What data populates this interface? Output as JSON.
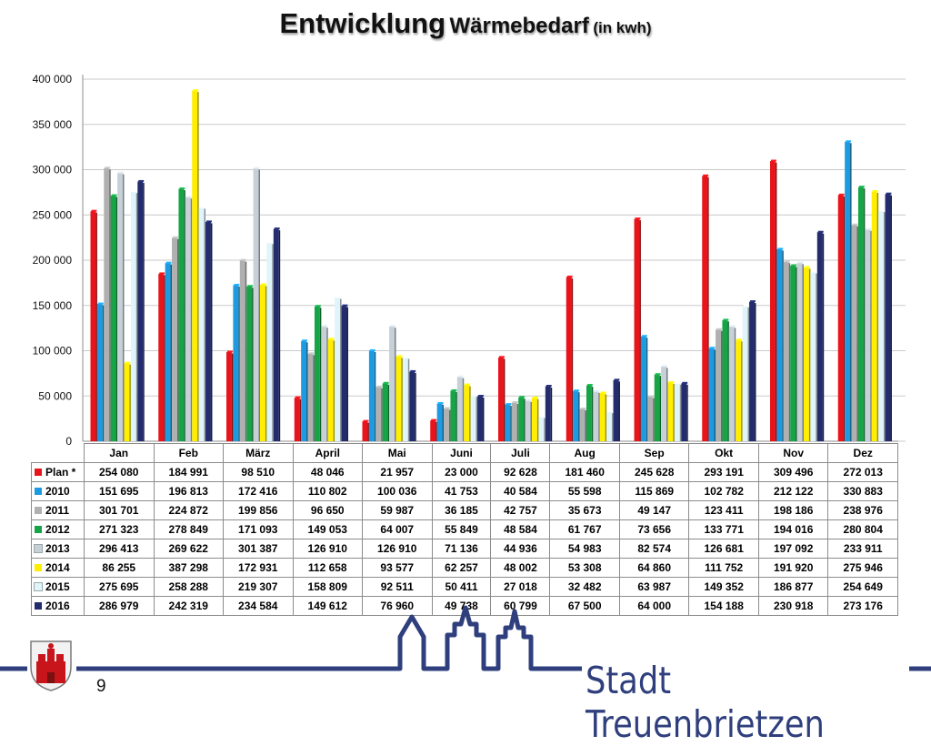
{
  "slide": {
    "title_main": "Entwicklung",
    "title_sub": "Wärmebedarf",
    "title_unit": "(in kwh)",
    "page_number": "9",
    "brand": "Stadt Treuenbrietzen",
    "brand_color": "#2f3f7d"
  },
  "chart_data": {
    "type": "bar",
    "title": "Entwicklung Wärmebedarf (in kwh)",
    "categories": [
      "Jan",
      "Feb",
      "März",
      "April",
      "Mai",
      "Juni",
      "Juli",
      "Aug",
      "Sep",
      "Okt",
      "Nov",
      "Dez"
    ],
    "ylim": [
      0,
      400000
    ],
    "yticks": [
      0,
      50000,
      100000,
      150000,
      200000,
      250000,
      300000,
      350000,
      400000
    ],
    "ytick_labels": [
      "0",
      "50 000",
      "100 000",
      "150 000",
      "200 000",
      "250 000",
      "300 000",
      "350 000",
      "400 000"
    ],
    "grid": true,
    "legend": "data-table",
    "series": [
      {
        "name": "Plan *",
        "color": "#e8141b",
        "values": [
          254080,
          184991,
          98510,
          48046,
          21957,
          23000,
          92628,
          181460,
          245628,
          293191,
          309496,
          272013
        ],
        "labels": [
          "254 080",
          "184 991",
          "98 510",
          "48 046",
          "21 957",
          "23 000",
          "92 628",
          "181 460",
          "245 628",
          "293 191",
          "309 496",
          "272 013"
        ]
      },
      {
        "name": "2010",
        "color": "#1e9be0",
        "values": [
          151695,
          196813,
          172416,
          110802,
          100036,
          41753,
          40584,
          55598,
          115869,
          102782,
          212122,
          330883
        ],
        "labels": [
          "151 695",
          "196 813",
          "172 416",
          "110 802",
          "100 036",
          "41 753",
          "40 584",
          "55 598",
          "115 869",
          "102 782",
          "212 122",
          "330 883"
        ]
      },
      {
        "name": "2011",
        "color": "#b0b0b0",
        "values": [
          301701,
          224872,
          199856,
          96650,
          59987,
          36185,
          42757,
          35673,
          49147,
          123411,
          198186,
          238976
        ],
        "labels": [
          "301 701",
          "224 872",
          "199 856",
          "96 650",
          "59 987",
          "36 185",
          "42 757",
          "35 673",
          "49 147",
          "123 411",
          "198 186",
          "238 976"
        ]
      },
      {
        "name": "2012",
        "color": "#17a447",
        "values": [
          271323,
          278849,
          171093,
          149053,
          64007,
          55849,
          48584,
          61767,
          73656,
          133771,
          194016,
          280804
        ],
        "labels": [
          "271 323",
          "278 849",
          "171 093",
          "149 053",
          "64 007",
          "55 849",
          "48 584",
          "61 767",
          "73 656",
          "133 771",
          "194 016",
          "280 804"
        ]
      },
      {
        "name": "2013",
        "color": "#c6d0d6",
        "values": [
          296413,
          269622,
          301387,
          126910,
          126910,
          71136,
          44936,
          54983,
          82574,
          126681,
          197092,
          233911
        ],
        "labels": [
          "296 413",
          "269 622",
          "301 387",
          "126 910",
          "126 910",
          "71 136",
          "44 936",
          "54 983",
          "82 574",
          "126 681",
          "197 092",
          "233 911"
        ]
      },
      {
        "name": "2014",
        "color": "#ffee00",
        "values": [
          86255,
          387298,
          172931,
          112658,
          93577,
          62257,
          48002,
          53308,
          64860,
          111752,
          191920,
          275946
        ],
        "labels": [
          "86 255",
          "387 298",
          "172 931",
          "112 658",
          "93 577",
          "62 257",
          "48 002",
          "53 308",
          "64 860",
          "111 752",
          "191 920",
          "275 946"
        ]
      },
      {
        "name": "2015",
        "color": "#dff4fb",
        "values": [
          275695,
          258288,
          219307,
          158809,
          92511,
          50411,
          27018,
          32482,
          63987,
          149352,
          186877,
          254649
        ],
        "labels": [
          "275 695",
          "258 288",
          "219 307",
          "158 809",
          "92 511",
          "50 411",
          "27 018",
          "32 482",
          "63 987",
          "149 352",
          "186 877",
          "254 649"
        ]
      },
      {
        "name": "2016",
        "color": "#232c6e",
        "values": [
          286979,
          242319,
          234584,
          149612,
          76960,
          49738,
          60799,
          67500,
          64000,
          154188,
          230918,
          273176
        ],
        "labels": [
          "286 979",
          "242 319",
          "234 584",
          "149 612",
          "76 960",
          "49 738",
          "60 799",
          "67 500",
          "64 000",
          "154 188",
          "230 918",
          "273 176"
        ]
      }
    ]
  }
}
